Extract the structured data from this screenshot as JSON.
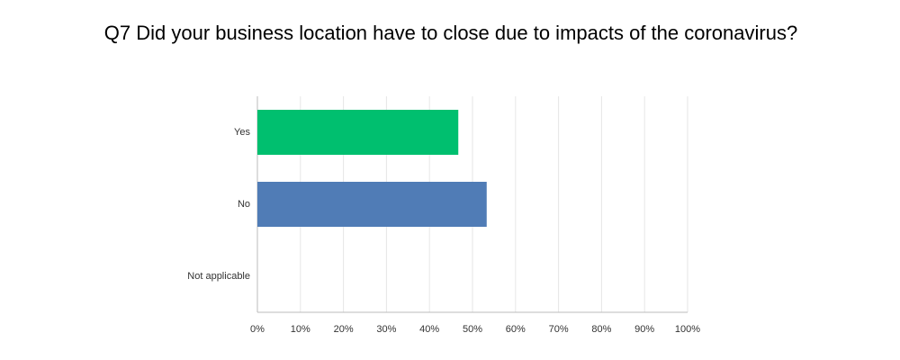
{
  "chart_data": {
    "type": "bar",
    "title": "Q7 Did your business location have to close due to impacts of the coronavirus?",
    "categories": [
      "Yes",
      "No",
      "Not applicable"
    ],
    "values": [
      46.7,
      53.3,
      0
    ],
    "colors": [
      "#00bf6f",
      "#507cb6",
      "#f05b24"
    ],
    "xlim": [
      0,
      100
    ],
    "xticks": [
      {
        "value": 0,
        "label": "0%"
      },
      {
        "value": 10,
        "label": "10%"
      },
      {
        "value": 20,
        "label": "20%"
      },
      {
        "value": 30,
        "label": "30%"
      },
      {
        "value": 40,
        "label": "40%"
      },
      {
        "value": 50,
        "label": "50%"
      },
      {
        "value": 60,
        "label": "60%"
      },
      {
        "value": 70,
        "label": "70%"
      },
      {
        "value": 80,
        "label": "80%"
      },
      {
        "value": 90,
        "label": "90%"
      },
      {
        "value": 100,
        "label": "100%"
      }
    ],
    "grid": true
  }
}
